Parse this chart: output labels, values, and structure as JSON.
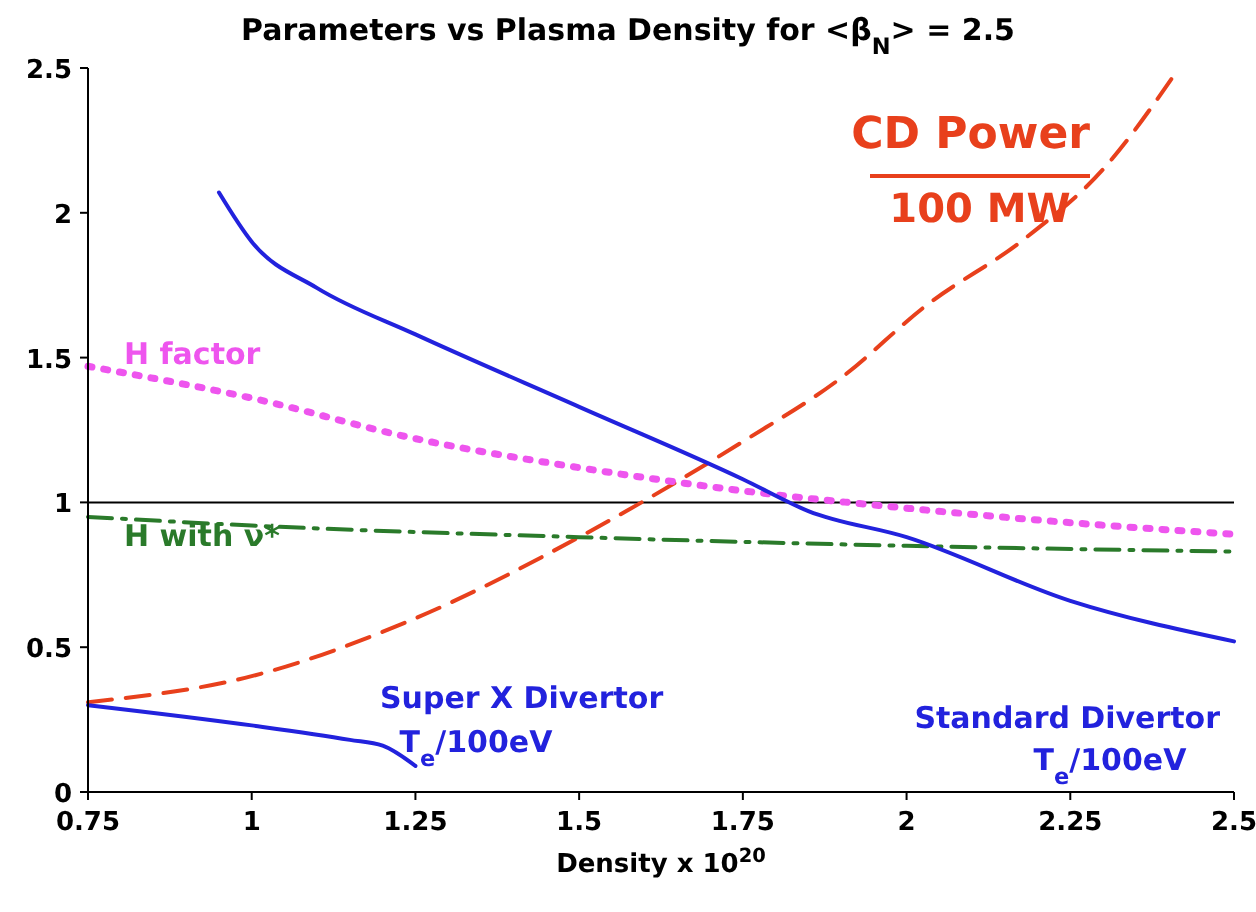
{
  "chart_data": {
    "type": "line",
    "title": "Parameters vs Plasma Density for <β$_{N}$> = 2.5",
    "xlabel": "Density x 10$^{20}$",
    "xlim": [
      0.75,
      2.5
    ],
    "xticks": [
      0.75,
      1,
      1.25,
      1.5,
      1.75,
      2,
      2.25,
      2.5
    ],
    "ylim": [
      0,
      2.5
    ],
    "yticks": [
      0,
      0.5,
      1,
      1.5,
      2,
      2.5
    ],
    "grid": false,
    "legend": false,
    "ref_lines": [
      {
        "axis": "y",
        "value": 1,
        "color": "#000000"
      }
    ],
    "annotations": [
      "100 MW",
      "T$_{e}$/100eV",
      "T$_{e}$/100eV"
    ],
    "series": [
      {
        "name": "CD Power",
        "color": "#e8401c",
        "line_style": "dashed",
        "x": [
          0.75,
          1,
          1.25,
          1.5,
          1.75,
          1.9,
          2.03,
          2.18,
          2.3,
          2.41
        ],
        "values": [
          0.31,
          0.4,
          0.6,
          0.88,
          1.21,
          1.43,
          1.68,
          1.91,
          2.15,
          2.48
        ]
      },
      {
        "name": "H factor",
        "color": "#ee55ee",
        "line_style": "dotted",
        "x": [
          0.75,
          1,
          1.25,
          1.5,
          1.75,
          2,
          2.25,
          2.5
        ],
        "values": [
          1.47,
          1.36,
          1.22,
          1.12,
          1.04,
          0.98,
          0.93,
          0.89
        ]
      },
      {
        "name": "H with ν*",
        "color": "#2a7a2a",
        "line_style": "dashdot",
        "x": [
          0.75,
          1,
          1.5,
          2,
          2.5
        ],
        "values": [
          0.95,
          0.92,
          0.88,
          0.85,
          0.83
        ]
      },
      {
        "name": "Standard Divertor",
        "color": "#2222dd",
        "line_style": "solid",
        "x": [
          0.95,
          1,
          1.1,
          1.25,
          1.5,
          1.75,
          1.85,
          2,
          2.25,
          2.5
        ],
        "values": [
          2.07,
          1.9,
          1.74,
          1.58,
          1.33,
          1.08,
          0.97,
          0.88,
          0.66,
          0.52
        ]
      },
      {
        "name": "Super X Divertor",
        "color": "#2222dd",
        "line_style": "solid",
        "x": [
          0.75,
          1,
          1.15,
          1.2,
          1.25
        ],
        "values": [
          0.3,
          0.23,
          0.18,
          0.16,
          0.09
        ]
      }
    ]
  }
}
